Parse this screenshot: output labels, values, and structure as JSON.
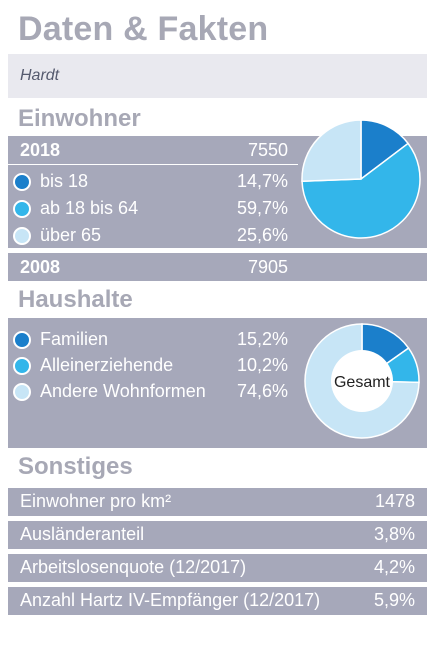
{
  "title": "Daten & Fakten",
  "location": "Hardt",
  "colors": {
    "dark_blue": "#1b7fcb",
    "mid_blue": "#33b6ea",
    "light_blue": "#c7e5f6",
    "panel": "#a6a8ba",
    "heading_gray": "#a7a8b5"
  },
  "einwohner": {
    "heading": "Einwohner",
    "year_2018": "2018",
    "value_2018": "7550",
    "groups": [
      {
        "label": "bis 18",
        "value": "14,7%",
        "color": "#1b7fcb",
        "share": 14.7
      },
      {
        "label": "ab 18 bis 64",
        "value": "59,7%",
        "color": "#33b6ea",
        "share": 59.7
      },
      {
        "label": "über 65",
        "value": "25,6%",
        "color": "#c7e5f6",
        "share": 25.6
      }
    ],
    "year_2008": "2008",
    "value_2008": "7905"
  },
  "haushalte": {
    "heading": "Haushalte",
    "center_label": "Gesamt",
    "groups": [
      {
        "label": "Familien",
        "value": "15,2%",
        "color": "#1b7fcb",
        "share": 15.2
      },
      {
        "label": "Alleinerziehende",
        "value": "10,2%",
        "color": "#33b6ea",
        "share": 10.2
      },
      {
        "label": "Andere Wohnformen",
        "value": "74,6%",
        "color": "#c7e5f6",
        "share": 74.6
      }
    ]
  },
  "sonstiges": {
    "heading": "Sonstiges",
    "rows": [
      {
        "label": "Einwohner pro km²",
        "value": "1478"
      },
      {
        "label": "Ausländeranteil",
        "value": "3,8%"
      },
      {
        "label": "Arbeitslosenquote (12/2017)",
        "value": "4,2%"
      },
      {
        "label": "Anzahl Hartz IV-Empfänger (12/2017)",
        "value": "5,9%"
      }
    ]
  }
}
